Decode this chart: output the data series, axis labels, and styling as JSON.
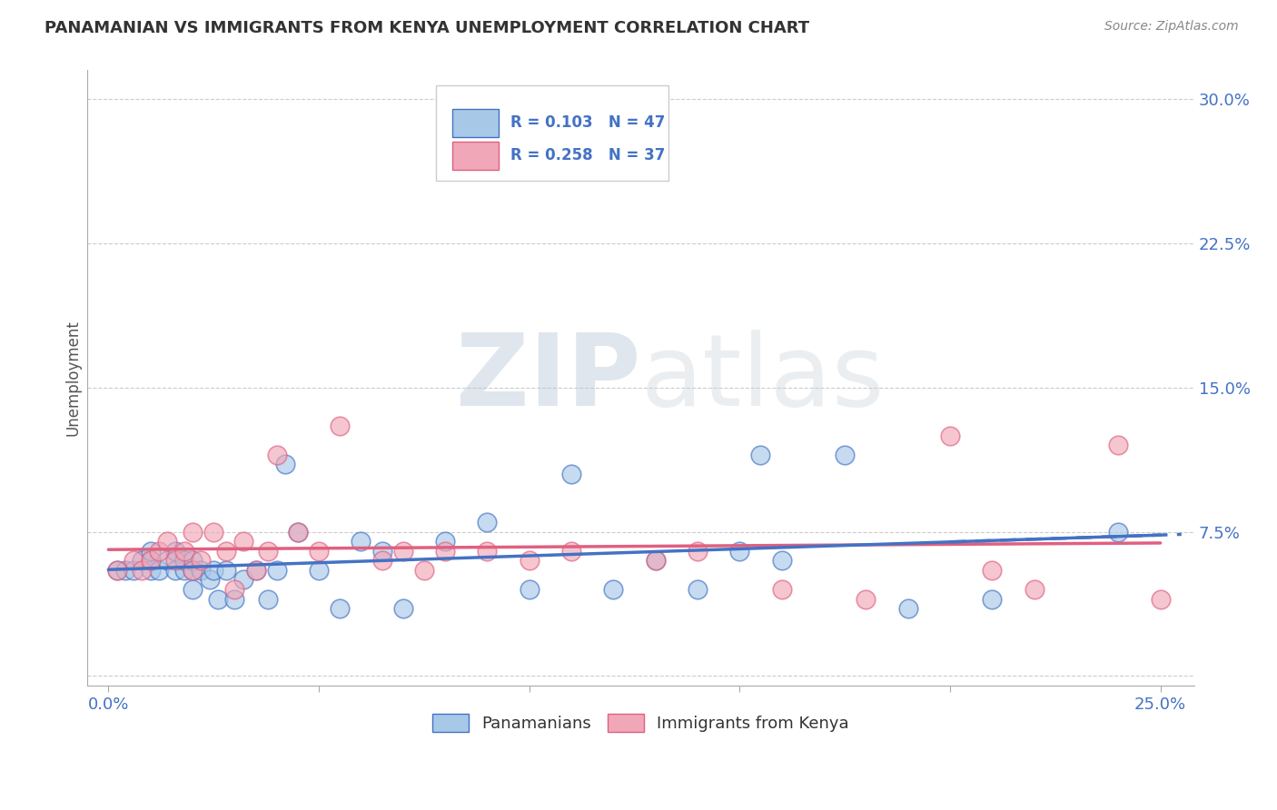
{
  "title": "PANAMANIAN VS IMMIGRANTS FROM KENYA UNEMPLOYMENT CORRELATION CHART",
  "source": "Source: ZipAtlas.com",
  "ylabel": "Unemployment",
  "xlim": [
    -0.005,
    0.258
  ],
  "ylim": [
    -0.005,
    0.315
  ],
  "xticks": [
    0.0,
    0.05,
    0.1,
    0.15,
    0.2,
    0.25
  ],
  "yticks": [
    0.0,
    0.075,
    0.15,
    0.225,
    0.3
  ],
  "ytick_labels": [
    "",
    "7.5%",
    "15.0%",
    "22.5%",
    "30.0%"
  ],
  "xtick_labels": [
    "0.0%",
    "",
    "",
    "",
    "",
    "25.0%"
  ],
  "blue_color": "#A8C8E8",
  "pink_color": "#F0A8B8",
  "trend_blue": "#4472C4",
  "trend_pink": "#E06080",
  "legend_R_blue": "R = 0.103",
  "legend_N_blue": "N = 47",
  "legend_R_pink": "R = 0.258",
  "legend_N_pink": "N = 37",
  "legend_label_blue": "Panamanians",
  "legend_label_pink": "Immigrants from Kenya",
  "watermark_zip": "ZIP",
  "watermark_atlas": "atlas",
  "blue_x": [
    0.002,
    0.004,
    0.006,
    0.008,
    0.01,
    0.01,
    0.01,
    0.012,
    0.014,
    0.016,
    0.016,
    0.018,
    0.018,
    0.02,
    0.02,
    0.02,
    0.022,
    0.024,
    0.025,
    0.026,
    0.028,
    0.03,
    0.032,
    0.035,
    0.038,
    0.04,
    0.042,
    0.045,
    0.05,
    0.055,
    0.06,
    0.065,
    0.07,
    0.08,
    0.09,
    0.1,
    0.11,
    0.12,
    0.13,
    0.14,
    0.15,
    0.155,
    0.16,
    0.175,
    0.19,
    0.21,
    0.24
  ],
  "blue_y": [
    0.055,
    0.055,
    0.055,
    0.06,
    0.055,
    0.06,
    0.065,
    0.055,
    0.06,
    0.055,
    0.065,
    0.055,
    0.06,
    0.045,
    0.055,
    0.06,
    0.055,
    0.05,
    0.055,
    0.04,
    0.055,
    0.04,
    0.05,
    0.055,
    0.04,
    0.055,
    0.11,
    0.075,
    0.055,
    0.035,
    0.07,
    0.065,
    0.035,
    0.07,
    0.08,
    0.045,
    0.105,
    0.045,
    0.06,
    0.045,
    0.065,
    0.115,
    0.06,
    0.115,
    0.035,
    0.04,
    0.075
  ],
  "pink_x": [
    0.002,
    0.006,
    0.008,
    0.01,
    0.012,
    0.014,
    0.016,
    0.018,
    0.02,
    0.02,
    0.022,
    0.025,
    0.028,
    0.03,
    0.032,
    0.035,
    0.038,
    0.04,
    0.045,
    0.05,
    0.055,
    0.065,
    0.07,
    0.075,
    0.08,
    0.09,
    0.1,
    0.11,
    0.13,
    0.14,
    0.16,
    0.18,
    0.2,
    0.21,
    0.22,
    0.24,
    0.25
  ],
  "pink_y": [
    0.055,
    0.06,
    0.055,
    0.06,
    0.065,
    0.07,
    0.06,
    0.065,
    0.055,
    0.075,
    0.06,
    0.075,
    0.065,
    0.045,
    0.07,
    0.055,
    0.065,
    0.115,
    0.075,
    0.065,
    0.13,
    0.06,
    0.065,
    0.055,
    0.065,
    0.065,
    0.06,
    0.065,
    0.06,
    0.065,
    0.045,
    0.04,
    0.125,
    0.055,
    0.045,
    0.12,
    0.04
  ],
  "trend_b_start": 0.044,
  "trend_b_end": 0.085,
  "trend_p_start": 0.042,
  "trend_p_end": 0.092,
  "grid_color": "#CCCCCC",
  "tick_color": "#4472C4",
  "title_color": "#333333",
  "source_color": "#888888"
}
